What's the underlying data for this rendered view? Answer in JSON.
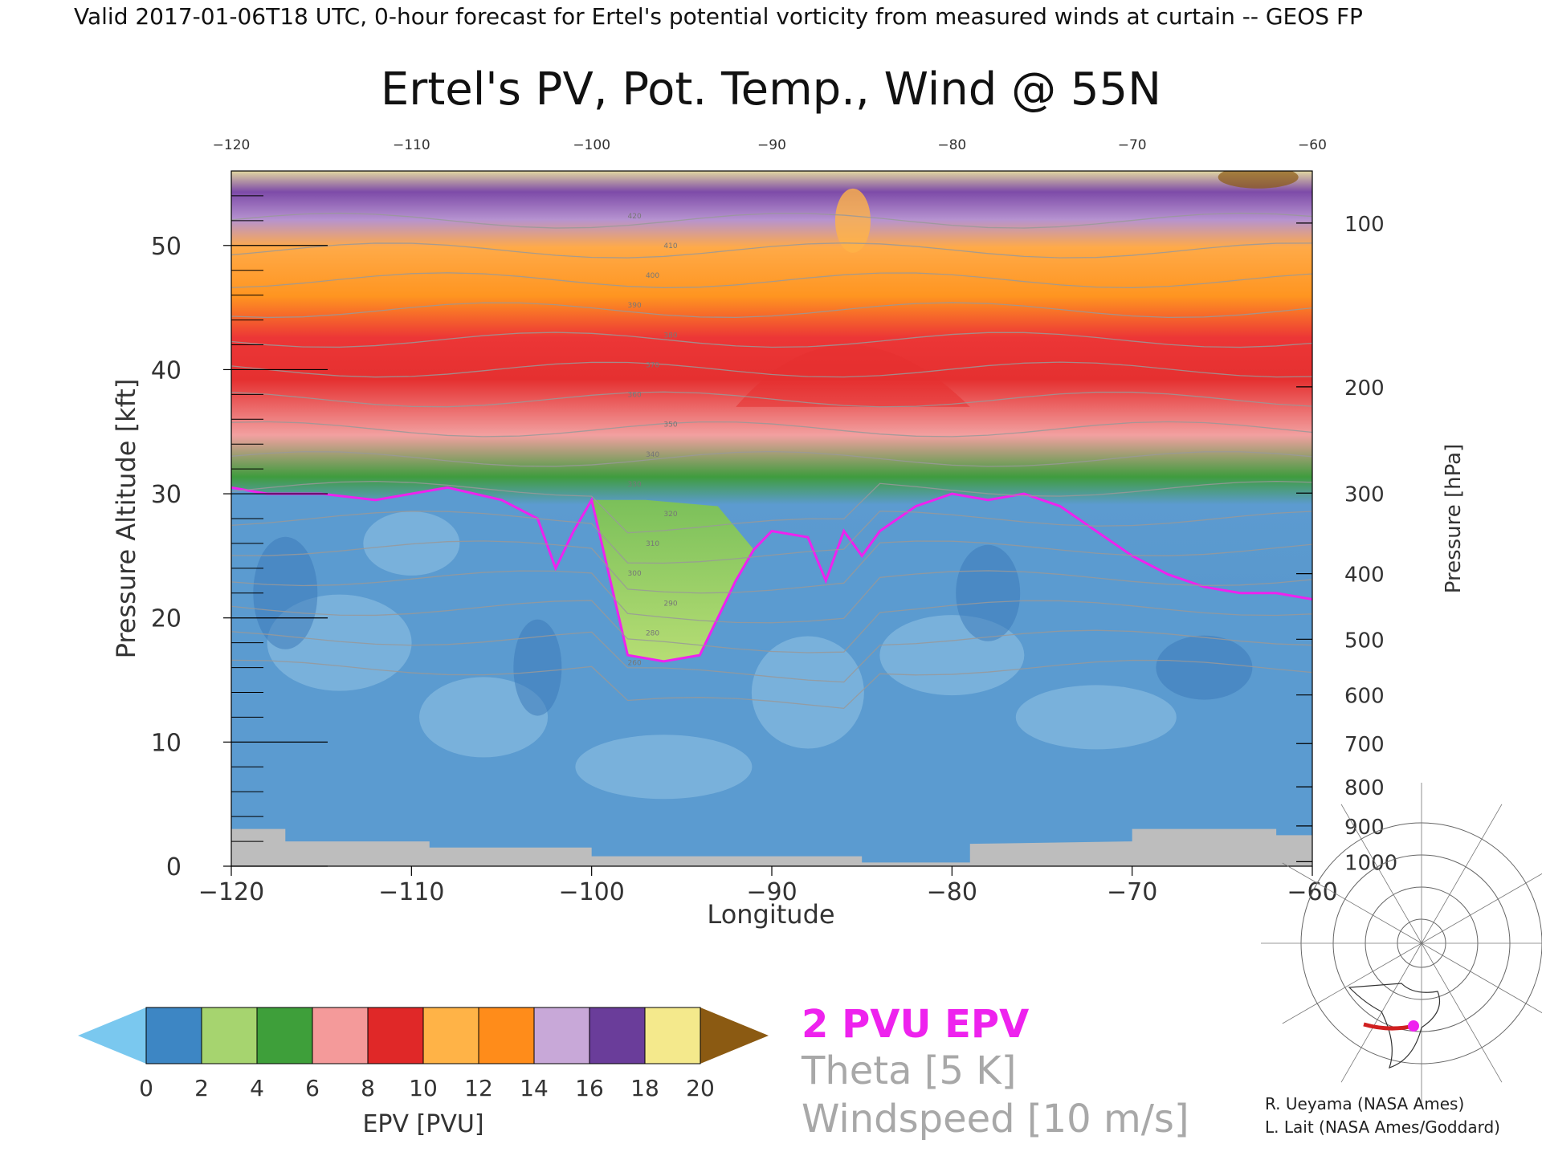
{
  "header": {
    "top_line": "Valid 2017-01-06T18 UTC, 0-hour forecast for Ertel's potential vorticity from measured winds at curtain -- GEOS FP",
    "title": "Ertel's PV, Pot. Temp., Wind @ 55N"
  },
  "chart_data": {
    "type": "heatmap",
    "title": "Ertel's PV, Pot. Temp., Wind @ 55N",
    "xlabel": "Longitude",
    "ylabel": "Pressure Altitude [kft]",
    "y2label": "Pressure [hPa]",
    "xlim": [
      -120,
      -60
    ],
    "ylim": [
      0,
      56
    ],
    "x_ticks": [
      -120,
      -110,
      -100,
      -90,
      -80,
      -70,
      -60
    ],
    "y_ticks": [
      0,
      10,
      20,
      30,
      40,
      50
    ],
    "pressure_ticks": [
      100,
      200,
      300,
      400,
      500,
      600,
      700,
      800,
      900,
      1000
    ],
    "two_pvu_boundary": {
      "x": [
        -120,
        -118,
        -115,
        -112,
        -110,
        -108,
        -105,
        -103,
        -102,
        -101,
        -100,
        -98,
        -96,
        -94,
        -92,
        -91,
        -90,
        -88,
        -87,
        -86,
        -85,
        -84,
        -82,
        -80,
        -78,
        -76,
        -74,
        -72,
        -70,
        -68,
        -66,
        -64,
        -62,
        -60
      ],
      "y": [
        30.5,
        30,
        30,
        29.5,
        30,
        30.5,
        29.5,
        28,
        24,
        27,
        29.5,
        17,
        16.5,
        17,
        23,
        25.5,
        27,
        26.5,
        23,
        27,
        25,
        27,
        29,
        30,
        29.5,
        30,
        29,
        27,
        25,
        23.5,
        22.5,
        22,
        22,
        21.5
      ]
    },
    "theta_contour_labels": [
      260,
      280,
      290,
      300,
      310,
      320,
      330,
      340,
      350,
      360,
      370,
      380,
      390,
      400,
      410,
      420
    ],
    "colorbar": {
      "label": "EPV [PVU]",
      "ticks": [
        0,
        2,
        4,
        6,
        8,
        10,
        12,
        14,
        16,
        18,
        20
      ],
      "colors": [
        "#3d86c4",
        "#a6d46f",
        "#3e9f3a",
        "#f49a9a",
        "#e02828",
        "#ffb347",
        "#ff8c1a",
        "#c8a8d8",
        "#6a3d9a",
        "#f4e98c"
      ],
      "under_color": "#7ac8ef",
      "over_color": "#8b5a12"
    },
    "legend": [
      {
        "label": "2 PVU EPV",
        "color": "#ee22ee"
      },
      {
        "label": "Theta [5 K]",
        "color": "#a8a8a8"
      },
      {
        "label": "Windspeed [10 m/s]",
        "color": "#a8a8a8"
      }
    ]
  },
  "credits": [
    "R. Ueyama (NASA Ames)",
    "L. Lait (NASA Ames/Goddard)"
  ]
}
